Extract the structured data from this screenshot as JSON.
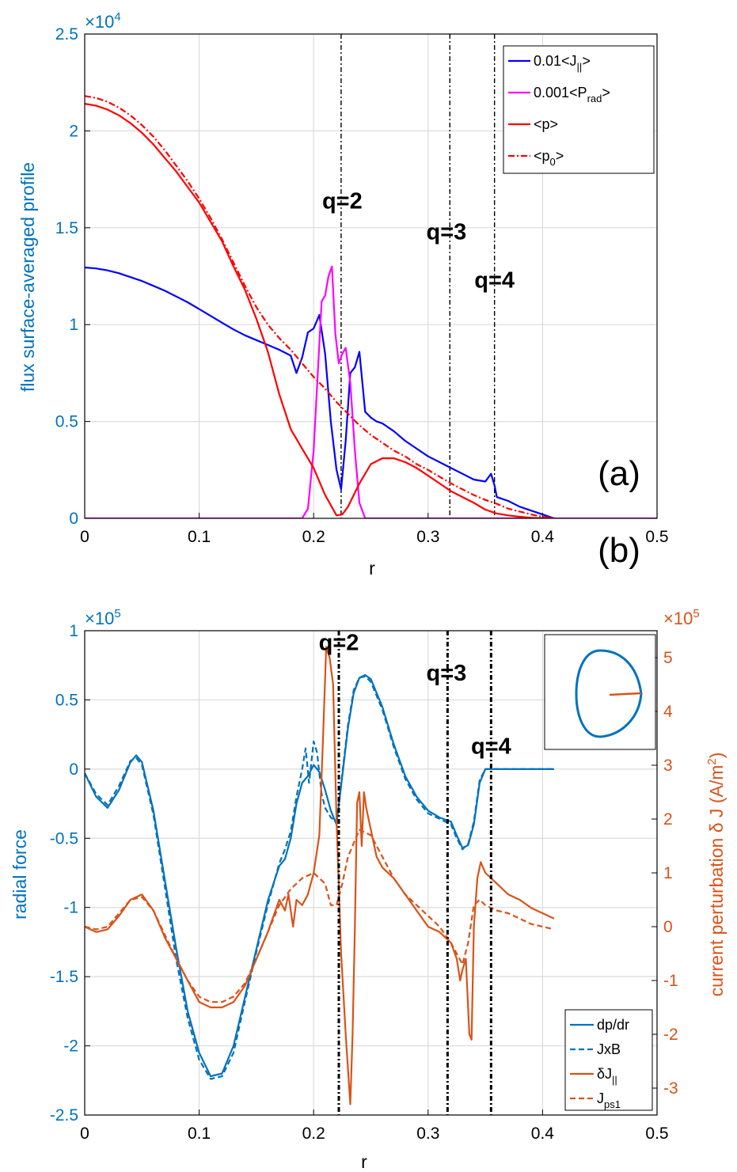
{
  "colors": {
    "left_axis": "#0072BD",
    "right_axis": "#D95319",
    "grid": "#dcdcdc",
    "black": "#000000"
  },
  "chart_data": [
    {
      "panel_label": "(a)",
      "type": "line",
      "xlabel": "r",
      "ylabel": "flux surface-averaged profile",
      "xlim": [
        0,
        0.5
      ],
      "ylim": [
        0,
        25000
      ],
      "x_ticks": [
        "0",
        "0.1",
        "0.2",
        "0.3",
        "0.4",
        "0.5"
      ],
      "y_ticks": [
        "0",
        "0.5",
        "1",
        "1.5",
        "2",
        "2.5"
      ],
      "y_exponent_base": "×10",
      "y_exponent_power": "4",
      "grid": true,
      "legend_position": "top-right",
      "legend": [
        {
          "main": "0.01<J",
          "sub": "||",
          "tail": ">"
        },
        {
          "main": "0.001<P",
          "sub": "rad",
          "tail": ">"
        },
        {
          "main": "<p>",
          "sub": "",
          "tail": ""
        },
        {
          "main": "<p",
          "sub": "0",
          "tail": ">"
        }
      ],
      "annotations": [
        {
          "text": "q=2",
          "x": 0.225,
          "y": 16000
        },
        {
          "text": "q=3",
          "x": 0.316,
          "y": 14400
        },
        {
          "text": "q=4",
          "x": 0.358,
          "y": 11900
        }
      ],
      "vlines": [
        0.224,
        0.319,
        0.358
      ],
      "series": [
        {
          "name": "0.01<J||>",
          "color": "#0000ff",
          "dash": "solid",
          "x": [
            0,
            0.01,
            0.02,
            0.03,
            0.04,
            0.05,
            0.06,
            0.07,
            0.08,
            0.09,
            0.1,
            0.11,
            0.12,
            0.13,
            0.14,
            0.15,
            0.16,
            0.17,
            0.18,
            0.185,
            0.19,
            0.195,
            0.2,
            0.205,
            0.21,
            0.215,
            0.22,
            0.224,
            0.228,
            0.232,
            0.236,
            0.24,
            0.245,
            0.25,
            0.255,
            0.26,
            0.27,
            0.28,
            0.29,
            0.3,
            0.31,
            0.32,
            0.33,
            0.34,
            0.35,
            0.355,
            0.358,
            0.36,
            0.37,
            0.38,
            0.39,
            0.4,
            0.41
          ],
          "y": [
            12950,
            12900,
            12800,
            12650,
            12450,
            12250,
            12000,
            11750,
            11450,
            11150,
            10800,
            10450,
            10100,
            9750,
            9450,
            9200,
            8950,
            8700,
            8400,
            7500,
            8300,
            9600,
            9800,
            10500,
            8500,
            5000,
            2500,
            1500,
            4000,
            7500,
            7800,
            8600,
            5500,
            5200,
            5000,
            4900,
            4500,
            4000,
            3600,
            3200,
            2900,
            2600,
            2300,
            2000,
            1900,
            2300,
            1700,
            1100,
            900,
            600,
            400,
            200,
            0
          ]
        },
        {
          "name": "0.001<Prad>",
          "color": "#ff00ff",
          "dash": "solid",
          "x": [
            0,
            0.18,
            0.19,
            0.195,
            0.2,
            0.205,
            0.207,
            0.21,
            0.213,
            0.216,
            0.219,
            0.222,
            0.225,
            0.228,
            0.232,
            0.236,
            0.24,
            0.245,
            0.25,
            0.5
          ],
          "y": [
            0,
            0,
            0,
            500,
            3500,
            9000,
            11200,
            11500,
            12500,
            13000,
            9500,
            8000,
            8500,
            8800,
            7000,
            3500,
            800,
            0,
            0,
            0
          ]
        },
        {
          "name": "<p>",
          "color": "#ff0000",
          "dash": "solid",
          "x": [
            0,
            0.01,
            0.02,
            0.03,
            0.04,
            0.05,
            0.06,
            0.07,
            0.08,
            0.09,
            0.1,
            0.11,
            0.12,
            0.13,
            0.14,
            0.15,
            0.16,
            0.17,
            0.18,
            0.19,
            0.2,
            0.21,
            0.22,
            0.225,
            0.23,
            0.24,
            0.25,
            0.26,
            0.27,
            0.28,
            0.29,
            0.3,
            0.31,
            0.32,
            0.33,
            0.34,
            0.35,
            0.36,
            0.37,
            0.38,
            0.39,
            0.4,
            0.41
          ],
          "y": [
            21400,
            21300,
            21100,
            20800,
            20400,
            19900,
            19300,
            18600,
            17900,
            17100,
            16300,
            15300,
            14300,
            13000,
            11800,
            10300,
            8600,
            6400,
            4600,
            3600,
            2600,
            1200,
            150,
            200,
            600,
            1800,
            2800,
            3100,
            3100,
            2900,
            2600,
            2200,
            1800,
            1400,
            1100,
            800,
            450,
            250,
            150,
            80,
            30,
            10,
            0
          ]
        },
        {
          "name": "<p0>",
          "color": "#ff0000",
          "dash": "dashdot",
          "x": [
            0,
            0.01,
            0.02,
            0.03,
            0.04,
            0.05,
            0.06,
            0.07,
            0.08,
            0.09,
            0.1,
            0.11,
            0.12,
            0.13,
            0.14,
            0.15,
            0.16,
            0.17,
            0.18,
            0.19,
            0.2,
            0.21,
            0.22,
            0.23,
            0.24,
            0.25,
            0.26,
            0.27,
            0.28,
            0.29,
            0.3,
            0.31,
            0.32,
            0.33,
            0.34,
            0.35,
            0.36,
            0.37,
            0.38,
            0.39,
            0.4,
            0.41
          ],
          "y": [
            21800,
            21700,
            21500,
            21200,
            20800,
            20300,
            19700,
            19000,
            18200,
            17400,
            16500,
            15500,
            14400,
            13200,
            12000,
            10900,
            10000,
            9300,
            8700,
            8000,
            7300,
            6700,
            6000,
            5400,
            4800,
            4300,
            3900,
            3500,
            3200,
            2800,
            2500,
            2150,
            1800,
            1500,
            1200,
            950,
            750,
            500,
            350,
            200,
            80,
            0
          ]
        }
      ]
    },
    {
      "panel_label": "(b)",
      "type": "line",
      "xlabel": "r",
      "ylabel": "radial force",
      "ylabel_right": "current perturbation δ J (A/m",
      "ylabel_right_sup": "2",
      "ylabel_right_tail": ")",
      "xlim": [
        0,
        0.5
      ],
      "ylim": [
        -250000,
        100000
      ],
      "ylim_right": [
        -350000,
        550000
      ],
      "x_ticks": [
        "0",
        "0.1",
        "0.2",
        "0.3",
        "0.4",
        "0.5"
      ],
      "y_ticks": [
        "-2.5",
        "-2",
        "-1.5",
        "-1",
        "-0.5",
        "0",
        "0.5",
        "1"
      ],
      "y_ticks_right": [
        "-3",
        "-2",
        "-1",
        "0",
        "1",
        "2",
        "3",
        "4",
        "5"
      ],
      "y_exponent_base": "×10",
      "y_exponent_power": "5",
      "y_right_exponent_base": "×10",
      "y_right_exponent_power": "5",
      "grid": true,
      "legend_position": "bottom-right",
      "legend": [
        {
          "main": "dp/dr",
          "sub": "",
          "tail": ""
        },
        {
          "main": "JxB",
          "sub": "",
          "tail": ""
        },
        {
          "main": "δJ",
          "sub": "||",
          "tail": ""
        },
        {
          "main": "J",
          "sub": "ps1",
          "tail": ""
        }
      ],
      "annotations": [
        {
          "text": "q=2",
          "x": 0.222,
          "y": 86000
        },
        {
          "text": "q=3",
          "x": 0.316,
          "y": 64000
        },
        {
          "text": "q=4",
          "x": 0.355,
          "y": 11000
        }
      ],
      "vlines": [
        0.222,
        0.317,
        0.355
      ],
      "inset": "cross-section",
      "series": [
        {
          "name": "dp/dr",
          "color": "#0072BD",
          "dash": "solid",
          "axis": "left",
          "x": [
            0,
            0.01,
            0.02,
            0.03,
            0.04,
            0.045,
            0.05,
            0.06,
            0.07,
            0.08,
            0.09,
            0.1,
            0.11,
            0.12,
            0.13,
            0.14,
            0.15,
            0.16,
            0.17,
            0.175,
            0.18,
            0.185,
            0.19,
            0.195,
            0.2,
            0.205,
            0.21,
            0.215,
            0.22,
            0.225,
            0.23,
            0.235,
            0.24,
            0.245,
            0.25,
            0.26,
            0.27,
            0.28,
            0.29,
            0.3,
            0.31,
            0.32,
            0.325,
            0.33,
            0.335,
            0.34,
            0.345,
            0.35,
            0.36,
            0.38,
            0.4,
            0.41
          ],
          "y": [
            -3000,
            -20000,
            -28000,
            -15000,
            5000,
            10000,
            5000,
            -30000,
            -80000,
            -130000,
            -175000,
            -205000,
            -222000,
            -220000,
            -200000,
            -165000,
            -130000,
            -95000,
            -70000,
            -65000,
            -50000,
            -25000,
            -10000,
            -5000,
            3000,
            -2000,
            -15000,
            -30000,
            -40000,
            -5000,
            30000,
            55000,
            66000,
            68000,
            65000,
            45000,
            18000,
            -5000,
            -20000,
            -30000,
            -35000,
            -38000,
            -48000,
            -57000,
            -55000,
            -40000,
            -10000,
            0,
            0,
            0,
            0,
            0
          ]
        },
        {
          "name": "JxB",
          "color": "#0072BD",
          "dash": "dash",
          "axis": "left",
          "x": [
            0,
            0.01,
            0.02,
            0.03,
            0.04,
            0.045,
            0.05,
            0.06,
            0.07,
            0.08,
            0.09,
            0.1,
            0.11,
            0.12,
            0.13,
            0.14,
            0.15,
            0.16,
            0.17,
            0.175,
            0.18,
            0.185,
            0.19,
            0.193,
            0.196,
            0.2,
            0.203,
            0.207,
            0.21,
            0.215,
            0.22,
            0.225,
            0.23,
            0.235,
            0.24,
            0.245,
            0.25,
            0.26,
            0.27,
            0.28,
            0.29,
            0.3,
            0.31,
            0.32,
            0.325,
            0.33,
            0.335,
            0.34,
            0.345,
            0.35,
            0.36,
            0.38,
            0.4,
            0.41
          ],
          "y": [
            -3000,
            -18000,
            -26000,
            -12000,
            6000,
            8000,
            3000,
            -33000,
            -85000,
            -138000,
            -180000,
            -210000,
            -224000,
            -222000,
            -205000,
            -168000,
            -132000,
            -98000,
            -68000,
            -58000,
            -45000,
            -20000,
            0,
            15000,
            -10000,
            20000,
            12000,
            -18000,
            -28000,
            -35000,
            -38000,
            -3000,
            32000,
            57000,
            66000,
            67000,
            63000,
            43000,
            16000,
            -7000,
            -22000,
            -32000,
            -36000,
            -40000,
            -50000,
            -58000,
            -54000,
            -38000,
            -8000,
            0,
            0,
            0,
            0,
            0
          ]
        },
        {
          "name": "δJ||",
          "color": "#D95319",
          "dash": "solid",
          "axis": "right",
          "x": [
            0,
            0.01,
            0.02,
            0.03,
            0.04,
            0.05,
            0.06,
            0.07,
            0.08,
            0.09,
            0.1,
            0.11,
            0.12,
            0.13,
            0.14,
            0.15,
            0.16,
            0.17,
            0.175,
            0.178,
            0.182,
            0.185,
            0.19,
            0.195,
            0.2,
            0.205,
            0.208,
            0.211,
            0.214,
            0.217,
            0.22,
            0.224,
            0.228,
            0.232,
            0.234,
            0.236,
            0.238,
            0.24,
            0.242,
            0.244,
            0.246,
            0.25,
            0.255,
            0.26,
            0.27,
            0.28,
            0.29,
            0.3,
            0.31,
            0.32,
            0.325,
            0.328,
            0.33,
            0.333,
            0.336,
            0.338,
            0.34,
            0.343,
            0.346,
            0.35,
            0.36,
            0.37,
            0.38,
            0.39,
            0.4,
            0.41
          ],
          "y": [
            0,
            -10000,
            -5000,
            20000,
            50000,
            60000,
            30000,
            -20000,
            -60000,
            -100000,
            -140000,
            -150000,
            -150000,
            -140000,
            -110000,
            -60000,
            -10000,
            50000,
            30000,
            60000,
            0,
            50000,
            40000,
            60000,
            100000,
            170000,
            340000,
            520000,
            500000,
            450000,
            200000,
            -50000,
            -200000,
            -330000,
            -200000,
            0,
            230000,
            250000,
            150000,
            250000,
            220000,
            180000,
            130000,
            110000,
            90000,
            60000,
            30000,
            0,
            -10000,
            -30000,
            -60000,
            -100000,
            -80000,
            -60000,
            -200000,
            -210000,
            0,
            90000,
            120000,
            100000,
            80000,
            60000,
            50000,
            35000,
            25000,
            15000
          ]
        },
        {
          "name": "Jps1",
          "color": "#D95319",
          "dash": "dash",
          "axis": "right",
          "x": [
            0,
            0.01,
            0.02,
            0.03,
            0.04,
            0.05,
            0.06,
            0.07,
            0.08,
            0.09,
            0.1,
            0.11,
            0.12,
            0.13,
            0.14,
            0.15,
            0.16,
            0.17,
            0.18,
            0.19,
            0.2,
            0.21,
            0.215,
            0.22,
            0.225,
            0.23,
            0.24,
            0.25,
            0.26,
            0.27,
            0.28,
            0.29,
            0.3,
            0.31,
            0.32,
            0.33,
            0.335,
            0.34,
            0.345,
            0.35,
            0.36,
            0.37,
            0.38,
            0.39,
            0.4,
            0.41
          ],
          "y": [
            0,
            -5000,
            0,
            25000,
            50000,
            55000,
            30000,
            -15000,
            -60000,
            -100000,
            -130000,
            -140000,
            -140000,
            -130000,
            -105000,
            -60000,
            -10000,
            40000,
            70000,
            90000,
            100000,
            80000,
            40000,
            40000,
            80000,
            130000,
            180000,
            170000,
            130000,
            90000,
            60000,
            40000,
            20000,
            0,
            -30000,
            -70000,
            -30000,
            40000,
            50000,
            40000,
            30000,
            25000,
            15000,
            5000,
            0,
            -5000
          ]
        }
      ]
    }
  ]
}
